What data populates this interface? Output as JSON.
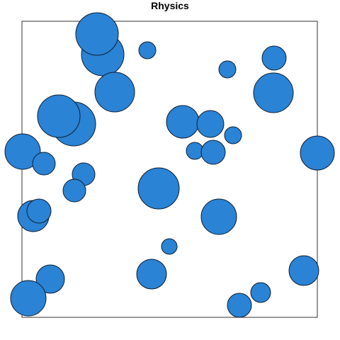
{
  "title": "Rhysics",
  "colors": {
    "ball_fill": "#2a83d4",
    "ball_stroke": "#0f1e33",
    "box_stroke": "#333333",
    "background": "#ffffff"
  }
}
